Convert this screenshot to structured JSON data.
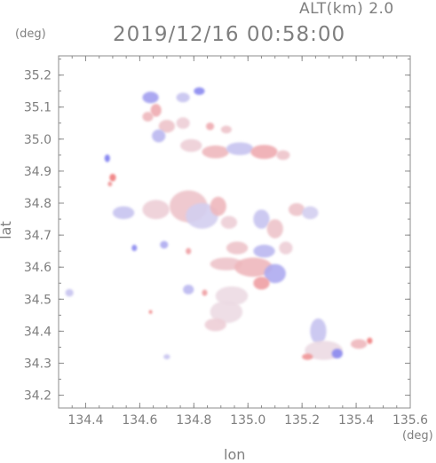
{
  "header": {
    "altitude_label": "ALT(km) 2.0",
    "title": "2019/12/16 00:58:00",
    "y_unit": "(deg)",
    "x_unit": "(deg)"
  },
  "chart_data": {
    "type": "heatmap",
    "title": "2019/12/16 00:58:00",
    "xlabel": "lon",
    "ylabel": "lat",
    "xlim": [
      134.3,
      135.6
    ],
    "ylim": [
      34.16,
      35.26
    ],
    "x_ticks": [
      134.4,
      134.6,
      134.8,
      135.0,
      135.2,
      135.4,
      135.6
    ],
    "x_tick_labels": [
      "134.4",
      "134.6",
      "134.8",
      "135.0",
      "135.2",
      "135.4",
      "135.6"
    ],
    "y_ticks": [
      34.2,
      34.3,
      34.4,
      34.5,
      34.6,
      34.7,
      34.8,
      34.9,
      35.0,
      35.1,
      35.2
    ],
    "y_tick_labels": [
      "34.2",
      "34.3",
      "34.4",
      "34.5",
      "34.6",
      "34.7",
      "34.8",
      "34.9",
      "35.0",
      "35.1",
      "35.2"
    ],
    "grid": false,
    "colors": {
      "positive": "#f07070",
      "negative": "#7070f0",
      "neutral": "#ece6f0",
      "axis": "#8c8c8c"
    },
    "echo_patches": [
      {
        "lon": 134.64,
        "lat": 35.13,
        "rx": 0.03,
        "ry": 0.018,
        "v": -0.6
      },
      {
        "lon": 134.66,
        "lat": 35.09,
        "rx": 0.02,
        "ry": 0.02,
        "v": 0.5
      },
      {
        "lon": 134.76,
        "lat": 35.13,
        "rx": 0.025,
        "ry": 0.015,
        "v": -0.3
      },
      {
        "lon": 134.82,
        "lat": 35.15,
        "rx": 0.02,
        "ry": 0.012,
        "v": -0.8
      },
      {
        "lon": 134.63,
        "lat": 35.07,
        "rx": 0.02,
        "ry": 0.015,
        "v": 0.4
      },
      {
        "lon": 134.7,
        "lat": 35.04,
        "rx": 0.03,
        "ry": 0.02,
        "v": 0.3
      },
      {
        "lon": 134.76,
        "lat": 35.05,
        "rx": 0.025,
        "ry": 0.018,
        "v": 0.2
      },
      {
        "lon": 134.67,
        "lat": 35.01,
        "rx": 0.025,
        "ry": 0.02,
        "v": -0.4
      },
      {
        "lon": 134.86,
        "lat": 35.04,
        "rx": 0.015,
        "ry": 0.012,
        "v": 0.5
      },
      {
        "lon": 134.92,
        "lat": 35.03,
        "rx": 0.02,
        "ry": 0.012,
        "v": 0.3
      },
      {
        "lon": 134.79,
        "lat": 34.98,
        "rx": 0.04,
        "ry": 0.02,
        "v": 0.2
      },
      {
        "lon": 134.88,
        "lat": 34.96,
        "rx": 0.05,
        "ry": 0.02,
        "v": 0.4
      },
      {
        "lon": 134.97,
        "lat": 34.97,
        "rx": 0.05,
        "ry": 0.02,
        "v": -0.3
      },
      {
        "lon": 135.06,
        "lat": 34.96,
        "rx": 0.05,
        "ry": 0.022,
        "v": 0.5
      },
      {
        "lon": 135.13,
        "lat": 34.95,
        "rx": 0.025,
        "ry": 0.015,
        "v": 0.3
      },
      {
        "lon": 134.48,
        "lat": 34.94,
        "rx": 0.01,
        "ry": 0.012,
        "v": -0.9
      },
      {
        "lon": 134.5,
        "lat": 34.88,
        "rx": 0.012,
        "ry": 0.012,
        "v": 0.9
      },
      {
        "lon": 134.49,
        "lat": 34.86,
        "rx": 0.008,
        "ry": 0.008,
        "v": 0.7
      },
      {
        "lon": 134.54,
        "lat": 34.77,
        "rx": 0.04,
        "ry": 0.02,
        "v": -0.3
      },
      {
        "lon": 134.66,
        "lat": 34.78,
        "rx": 0.05,
        "ry": 0.03,
        "v": 0.2
      },
      {
        "lon": 134.78,
        "lat": 34.79,
        "rx": 0.07,
        "ry": 0.05,
        "v": 0.3
      },
      {
        "lon": 134.83,
        "lat": 34.76,
        "rx": 0.06,
        "ry": 0.04,
        "v": -0.2
      },
      {
        "lon": 134.89,
        "lat": 34.79,
        "rx": 0.03,
        "ry": 0.03,
        "v": 0.4
      },
      {
        "lon": 134.93,
        "lat": 34.74,
        "rx": 0.03,
        "ry": 0.02,
        "v": 0.2
      },
      {
        "lon": 135.05,
        "lat": 34.75,
        "rx": 0.03,
        "ry": 0.03,
        "v": -0.3
      },
      {
        "lon": 135.1,
        "lat": 34.72,
        "rx": 0.03,
        "ry": 0.03,
        "v": 0.3
      },
      {
        "lon": 135.18,
        "lat": 34.78,
        "rx": 0.03,
        "ry": 0.02,
        "v": 0.3
      },
      {
        "lon": 135.23,
        "lat": 34.77,
        "rx": 0.03,
        "ry": 0.02,
        "v": -0.2
      },
      {
        "lon": 134.58,
        "lat": 34.66,
        "rx": 0.01,
        "ry": 0.01,
        "v": -0.8
      },
      {
        "lon": 134.69,
        "lat": 34.67,
        "rx": 0.015,
        "ry": 0.012,
        "v": -0.5
      },
      {
        "lon": 134.78,
        "lat": 34.65,
        "rx": 0.01,
        "ry": 0.01,
        "v": 0.6
      },
      {
        "lon": 134.96,
        "lat": 34.66,
        "rx": 0.04,
        "ry": 0.02,
        "v": 0.3
      },
      {
        "lon": 135.06,
        "lat": 34.65,
        "rx": 0.04,
        "ry": 0.02,
        "v": -0.4
      },
      {
        "lon": 135.14,
        "lat": 34.66,
        "rx": 0.025,
        "ry": 0.02,
        "v": 0.2
      },
      {
        "lon": 134.92,
        "lat": 34.61,
        "rx": 0.06,
        "ry": 0.02,
        "v": 0.3
      },
      {
        "lon": 135.02,
        "lat": 34.6,
        "rx": 0.07,
        "ry": 0.03,
        "v": 0.4
      },
      {
        "lon": 135.1,
        "lat": 34.58,
        "rx": 0.04,
        "ry": 0.03,
        "v": -0.5
      },
      {
        "lon": 135.05,
        "lat": 34.55,
        "rx": 0.03,
        "ry": 0.02,
        "v": 0.6
      },
      {
        "lon": 134.78,
        "lat": 34.53,
        "rx": 0.02,
        "ry": 0.015,
        "v": -0.4
      },
      {
        "lon": 134.84,
        "lat": 34.52,
        "rx": 0.01,
        "ry": 0.01,
        "v": 0.6
      },
      {
        "lon": 134.94,
        "lat": 34.51,
        "rx": 0.06,
        "ry": 0.03,
        "v": 0.1
      },
      {
        "lon": 134.92,
        "lat": 34.46,
        "rx": 0.06,
        "ry": 0.035,
        "v": 0.1
      },
      {
        "lon": 134.88,
        "lat": 34.42,
        "rx": 0.04,
        "ry": 0.02,
        "v": 0.2
      },
      {
        "lon": 134.34,
        "lat": 34.52,
        "rx": 0.015,
        "ry": 0.012,
        "v": -0.3
      },
      {
        "lon": 134.64,
        "lat": 34.46,
        "rx": 0.005,
        "ry": 0.006,
        "v": 0.8
      },
      {
        "lon": 134.7,
        "lat": 34.32,
        "rx": 0.012,
        "ry": 0.008,
        "v": -0.3
      },
      {
        "lon": 135.26,
        "lat": 34.4,
        "rx": 0.03,
        "ry": 0.04,
        "v": -0.3
      },
      {
        "lon": 135.28,
        "lat": 34.34,
        "rx": 0.07,
        "ry": 0.03,
        "v": 0.1
      },
      {
        "lon": 135.22,
        "lat": 34.32,
        "rx": 0.02,
        "ry": 0.01,
        "v": 0.7
      },
      {
        "lon": 135.33,
        "lat": 34.33,
        "rx": 0.02,
        "ry": 0.015,
        "v": -0.8
      },
      {
        "lon": 135.41,
        "lat": 34.36,
        "rx": 0.03,
        "ry": 0.015,
        "v": 0.4
      },
      {
        "lon": 135.45,
        "lat": 34.37,
        "rx": 0.01,
        "ry": 0.01,
        "v": 0.9
      }
    ]
  }
}
